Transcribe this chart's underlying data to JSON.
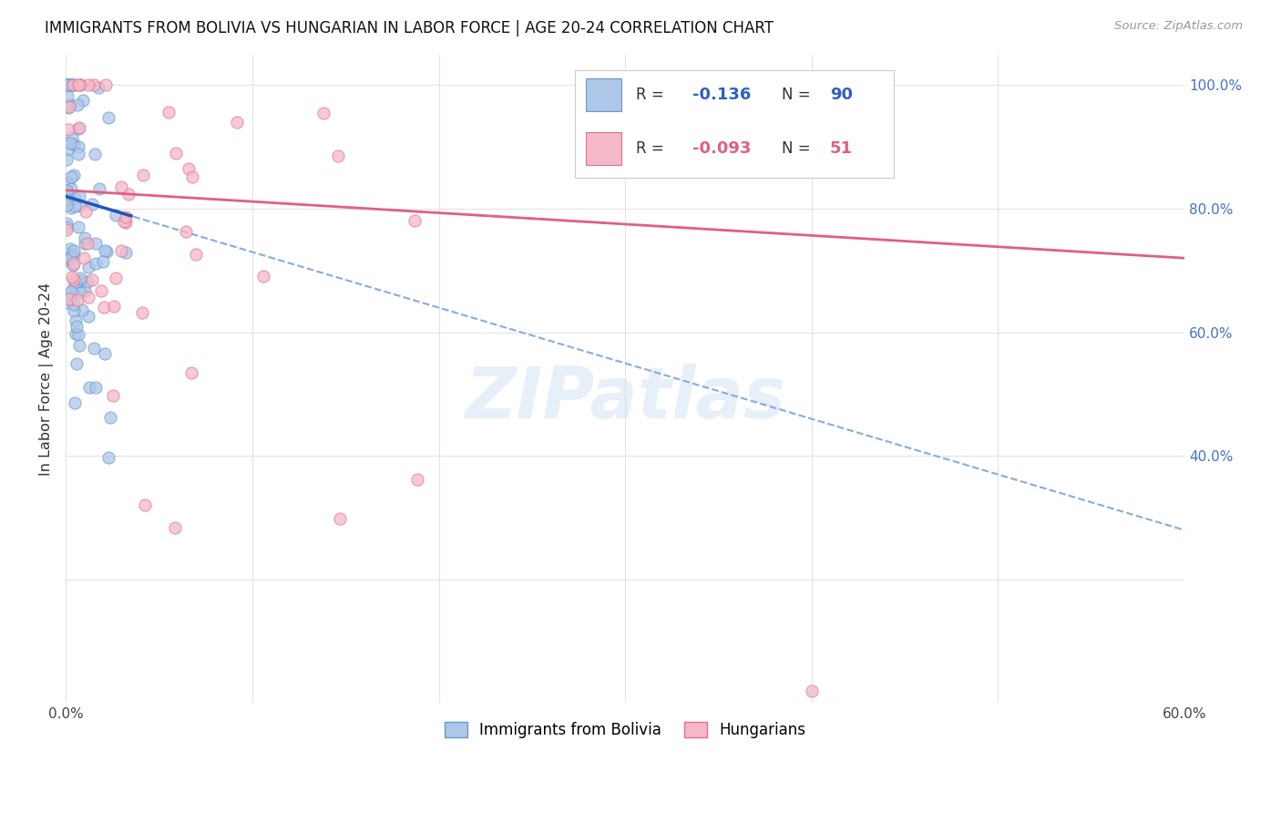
{
  "title": "IMMIGRANTS FROM BOLIVIA VS HUNGARIAN IN LABOR FORCE | AGE 20-24 CORRELATION CHART",
  "source": "Source: ZipAtlas.com",
  "ylabel": "In Labor Force | Age 20-24",
  "xlim": [
    0.0,
    0.6
  ],
  "ylim": [
    0.0,
    1.05
  ],
  "bolivia_color": "#aec6e8",
  "bolivia_edge": "#6699cc",
  "hungarian_color": "#f4b8c8",
  "hungarian_edge": "#e07090",
  "bolivia_R": -0.136,
  "bolivia_N": 90,
  "hungarian_R": -0.093,
  "hungarian_N": 51,
  "legend_label_bolivia": "Immigrants from Bolivia",
  "legend_label_hungarian": "Hungarians",
  "watermark": "ZIPatlas",
  "bolivia_trend_color": "#2255bb",
  "hungarian_trend_color": "#e06080",
  "dashed_trend_color": "#88aadd",
  "bolivia_seed": 12,
  "hungarian_seed": 99
}
